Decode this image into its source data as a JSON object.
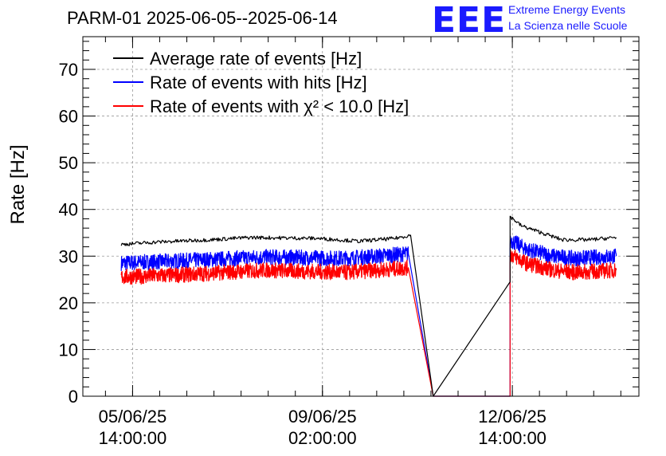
{
  "header": {
    "title": "PARM-01 2025-06-05--2025-06-14",
    "logo": "EEE",
    "brand_line1": "Extreme Energy Events",
    "brand_line2": "La Scienza nelle Scuole"
  },
  "chart_data": {
    "type": "line",
    "title": "PARM-01 2025-06-05--2025-06-14",
    "xlabel": "",
    "ylabel": "Rate [Hz]",
    "ylim": [
      0,
      77
    ],
    "yticks": [
      0,
      10,
      20,
      30,
      40,
      50,
      60,
      70
    ],
    "x_axis_type": "datetime",
    "xlim": [
      "2025-06-04 16:00:00",
      "2025-06-14 22:00:00"
    ],
    "xticks": [
      {
        "date": "2025-06-05 14:00:00",
        "line1": "05/06/25",
        "line2": "14:00:00"
      },
      {
        "date": "2025-06-09 02:00:00",
        "line1": "09/06/25",
        "line2": "02:00:00"
      },
      {
        "date": "2025-06-12 14:00:00",
        "line1": "12/06/25",
        "line2": "14:00:00"
      }
    ],
    "grid": true,
    "legend_position": "top-left",
    "series": [
      {
        "name": "Average rate of events [Hz]",
        "color": "#000000",
        "noise": 0.4,
        "points": [
          [
            "2025-06-05 09:00:00",
            32.5
          ],
          [
            "2025-06-06 00:00:00",
            33.0
          ],
          [
            "2025-06-07 00:00:00",
            33.5
          ],
          [
            "2025-06-07 18:00:00",
            34.0
          ],
          [
            "2025-06-09 00:00:00",
            33.8
          ],
          [
            "2025-06-09 18:00:00",
            33.2
          ],
          [
            "2025-06-10 10:00:00",
            33.8
          ],
          [
            "2025-06-10 17:00:00",
            34.5
          ],
          [
            "2025-06-11 03:00:00",
            0
          ],
          [
            "2025-06-12 13:00:00",
            24.5
          ],
          [
            "2025-06-12 13:01:00",
            38.5
          ],
          [
            "2025-06-12 18:00:00",
            36.5
          ],
          [
            "2025-06-13 03:00:00",
            35.0
          ],
          [
            "2025-06-13 12:00:00",
            33.5
          ],
          [
            "2025-06-14 00:00:00",
            33.5
          ],
          [
            "2025-06-14 12:00:00",
            34.0
          ]
        ]
      },
      {
        "name": "Rate of events with hits [Hz]",
        "color": "#0000ff",
        "noise": 1.4,
        "points": [
          [
            "2025-06-05 09:00:00",
            28.5
          ],
          [
            "2025-06-06 12:00:00",
            29.0
          ],
          [
            "2025-06-08 00:00:00",
            29.8
          ],
          [
            "2025-06-09 12:00:00",
            29.5
          ],
          [
            "2025-06-10 16:00:00",
            30.5
          ],
          [
            "2025-06-11 03:00:00",
            0
          ],
          [
            "2025-06-12 13:00:00",
            0
          ],
          [
            "2025-06-12 13:01:00",
            33.5
          ],
          [
            "2025-06-12 20:00:00",
            31.5
          ],
          [
            "2025-06-13 08:00:00",
            30.0
          ],
          [
            "2025-06-13 18:00:00",
            29.5
          ],
          [
            "2025-06-14 12:00:00",
            30.0
          ]
        ]
      },
      {
        "name": "Rate of events with χ² < 10.0 [Hz]",
        "color": "#ff0000",
        "noise": 1.4,
        "points": [
          [
            "2025-06-05 09:00:00",
            25.5
          ],
          [
            "2025-06-06 12:00:00",
            26.0
          ],
          [
            "2025-06-08 00:00:00",
            27.0
          ],
          [
            "2025-06-09 12:00:00",
            26.5
          ],
          [
            "2025-06-10 16:00:00",
            27.5
          ],
          [
            "2025-06-11 03:00:00",
            0
          ],
          [
            "2025-06-12 13:00:00",
            0
          ],
          [
            "2025-06-12 13:01:00",
            30.5
          ],
          [
            "2025-06-12 20:00:00",
            28.5
          ],
          [
            "2025-06-13 08:00:00",
            27.0
          ],
          [
            "2025-06-13 18:00:00",
            26.5
          ],
          [
            "2025-06-14 12:00:00",
            27.0
          ]
        ]
      }
    ]
  }
}
